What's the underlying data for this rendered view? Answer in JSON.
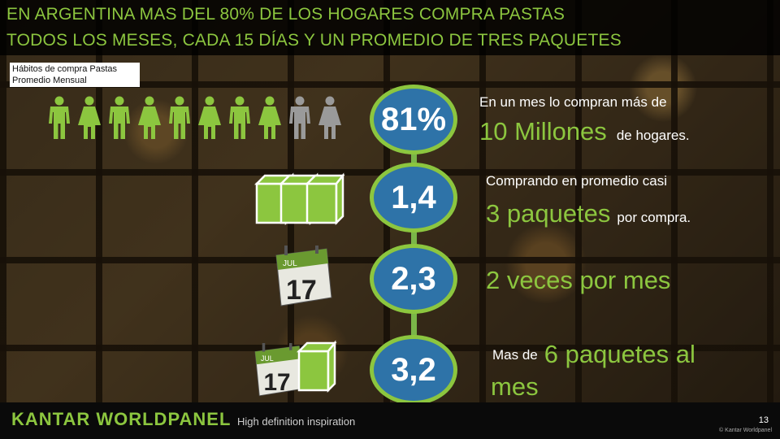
{
  "title": {
    "line1": "EN ARGENTINA MAS DEL 80% DE LOS HOGARES COMPRA PASTAS",
    "line2": "TODOS LOS MESES, CADA 15 DÍAS Y UN PROMEDIO DE TRES PAQUETES"
  },
  "subtitle": {
    "line1": "Hábitos de compra Pastas",
    "line2": "Promedio Mensual"
  },
  "people": {
    "green_count": 8,
    "gray_count": 2,
    "colors": {
      "green": "#8cc63f",
      "gray": "#9a9a9a"
    }
  },
  "metrics": [
    {
      "value": "81%"
    },
    {
      "value": "1,4"
    },
    {
      "value": "2,3"
    },
    {
      "value": "3,2"
    }
  ],
  "rows": {
    "r1": {
      "line1": "En un mes lo compran  más de",
      "highlight": "10 Millones",
      "suffix": "de hogares."
    },
    "r2": {
      "line1": "Comprando en promedio casi",
      "highlight": "3 paquetes",
      "suffix": "por compra."
    },
    "r3": {
      "highlight": "2 veces por mes"
    },
    "r4": {
      "prefix": "Mas de",
      "highlight": "6 paquetes al",
      "highlight2": "mes"
    }
  },
  "calendar": {
    "month": "JUL",
    "day": "17"
  },
  "footer": {
    "brand": "KANTAR WORLDPANEL",
    "tagline": "High definition inspiration",
    "page_number": "13",
    "copyright": "© Kantar Worldpanel"
  },
  "colors": {
    "accent_green": "#8cc63f",
    "circle_blue": "#2e73a8"
  }
}
